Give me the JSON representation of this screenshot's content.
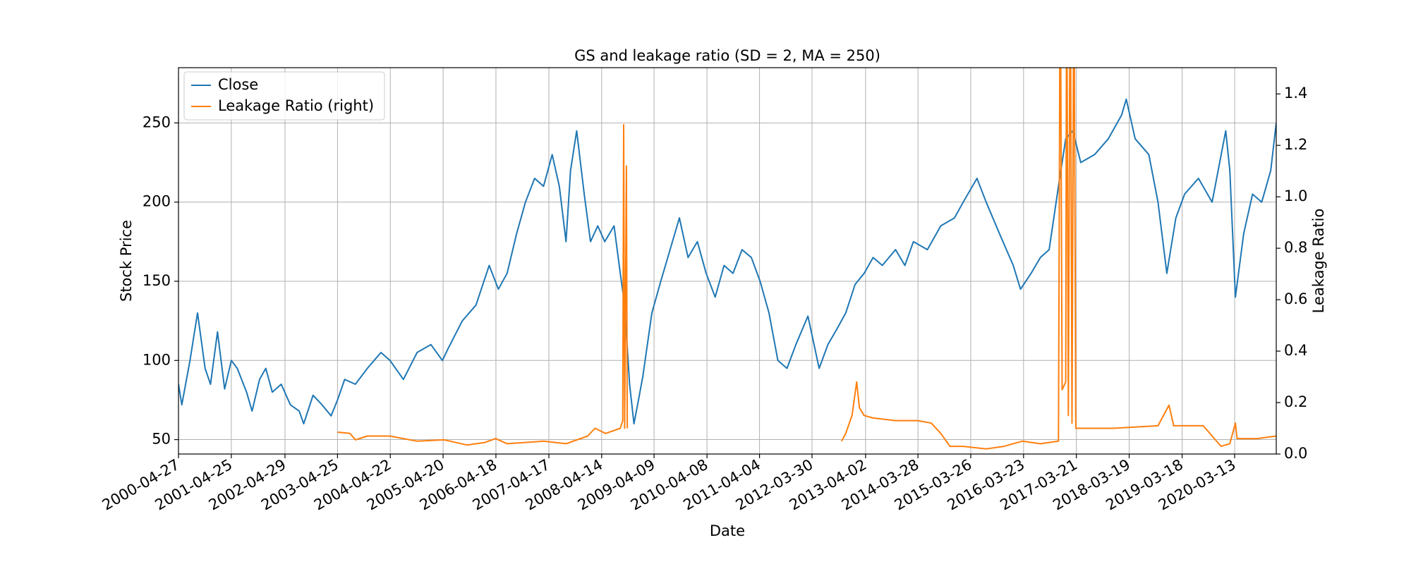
{
  "chart_data": {
    "type": "line",
    "title": "GS and leakage ratio (SD = 2, MA = 250)",
    "x_label": "Date",
    "y_label": "Stock Price",
    "y2_label": "Leakage Ratio",
    "xlim": [
      "2000-04-27",
      "2020-12-24"
    ],
    "xticks": [
      "2000-04-27",
      "2001-04-25",
      "2002-04-29",
      "2003-04-25",
      "2004-04-22",
      "2005-04-20",
      "2006-04-18",
      "2007-04-17",
      "2008-04-14",
      "2009-04-09",
      "2010-04-08",
      "2011-04-04",
      "2012-03-30",
      "2013-04-02",
      "2014-03-28",
      "2015-03-26",
      "2016-03-23",
      "2017-03-21",
      "2018-03-19",
      "2019-03-18",
      "2020-03-13"
    ],
    "ylim": [
      40.9,
      284.9
    ],
    "yticks": [
      50,
      100,
      150,
      200,
      250
    ],
    "y2lim": [
      0,
      1.502
    ],
    "y2ticks": [
      {
        "value": 0,
        "label": "0.0"
      },
      0.2,
      0.4,
      0.6,
      0.8,
      {
        "value": 1,
        "label": "1.0"
      },
      1.2,
      1.4
    ],
    "grid": true,
    "legend": "upper left",
    "series": [
      {
        "name": "Close",
        "color": "#1f77b4",
        "axis": "y",
        "x": [
          "2000-04-27",
          "2000-05-20",
          "2000-07-15",
          "2000-09-05",
          "2000-10-27",
          "2000-12-03",
          "2001-01-20",
          "2001-03-10",
          "2001-04-25",
          "2001-06-05",
          "2001-08-08",
          "2001-09-15",
          "2001-11-05",
          "2001-12-18",
          "2002-02-01",
          "2002-04-03",
          "2002-06-05",
          "2002-08-05",
          "2002-09-05",
          "2002-11-08",
          "2003-01-09",
          "2003-03-12",
          "2003-04-25",
          "2003-06-13",
          "2003-08-26",
          "2003-11-16",
          "2004-02-18",
          "2004-04-20",
          "2004-07-21",
          "2004-10-23",
          "2005-01-26",
          "2005-04-15",
          "2005-05-27",
          "2005-08-30",
          "2005-12-02",
          "2006-03-03",
          "2006-05-05",
          "2006-07-04",
          "2006-09-07",
          "2006-11-07",
          "2007-01-09",
          "2007-03-11",
          "2007-05-10",
          "2007-06-28",
          "2007-08-13",
          "2007-09-13",
          "2007-10-25",
          "2007-12-16",
          "2008-01-28",
          "2008-03-18",
          "2008-05-05",
          "2008-07-08",
          "2008-08-20",
          "2008-09-19",
          "2008-10-23",
          "2008-11-22",
          "2008-12-23",
          "2009-01-22",
          "2009-03-25",
          "2009-05-25",
          "2009-07-28",
          "2009-09-30",
          "2009-11-29",
          "2010-02-01",
          "2010-04-02",
          "2010-06-03",
          "2010-08-03",
          "2010-10-04",
          "2010-12-05",
          "2011-02-07",
          "2011-04-08",
          "2011-06-08",
          "2011-08-08",
          "2011-10-10",
          "2011-12-10",
          "2012-03-02",
          "2012-05-18",
          "2012-07-17",
          "2012-09-18",
          "2012-11-17",
          "2013-01-20",
          "2013-03-23",
          "2013-05-24",
          "2013-07-26",
          "2013-10-25",
          "2013-12-28",
          "2014-02-25",
          "2014-06-01",
          "2014-09-01",
          "2014-12-04",
          "2015-02-02",
          "2015-05-08",
          "2015-07-10",
          "2015-10-10",
          "2016-01-12",
          "2016-03-02",
          "2016-05-14",
          "2016-07-17",
          "2016-09-15",
          "2016-11-18",
          "2017-01-07",
          "2017-02-25",
          "2017-04-20",
          "2017-07-24",
          "2017-10-27",
          "2018-01-26",
          "2018-02-27",
          "2018-04-29",
          "2018-08-01",
          "2018-10-03",
          "2018-12-03",
          "2019-02-03",
          "2019-04-04",
          "2019-07-08",
          "2019-10-10",
          "2020-01-12",
          "2020-02-09",
          "2020-03-18",
          "2020-05-14",
          "2020-07-14",
          "2020-09-15",
          "2020-11-16",
          "2020-12-24"
        ],
        "values": [
          85,
          72,
          100,
          130,
          95,
          85,
          118,
          82,
          100,
          95,
          80,
          68,
          88,
          95,
          80,
          85,
          72,
          68,
          60,
          78,
          72,
          65,
          75,
          88,
          85,
          95,
          105,
          100,
          88,
          105,
          110,
          100,
          108,
          125,
          135,
          160,
          145,
          155,
          180,
          200,
          215,
          210,
          230,
          210,
          175,
          220,
          245,
          205,
          175,
          185,
          175,
          185,
          155,
          135,
          85,
          60,
          75,
          90,
          130,
          150,
          170,
          190,
          165,
          175,
          155,
          140,
          160,
          155,
          170,
          165,
          150,
          130,
          100,
          95,
          110,
          128,
          95,
          110,
          120,
          130,
          148,
          155,
          165,
          160,
          170,
          160,
          175,
          170,
          185,
          190,
          200,
          215,
          200,
          180,
          160,
          145,
          155,
          165,
          170,
          210,
          240,
          245,
          225,
          230,
          240,
          255,
          265,
          240,
          230,
          200,
          155,
          190,
          205,
          215,
          200,
          245,
          220,
          140,
          180,
          205,
          200,
          220,
          250
        ]
      },
      {
        "name": "Leakage Ratio (right)",
        "color": "#ff7f0e",
        "axis": "y2",
        "x": [
          "2003-04-25",
          "2003-07-20",
          "2003-08-26",
          "2003-11-16",
          "2004-04-20",
          "2004-10-23",
          "2005-04-27",
          "2005-09-30",
          "2006-02-02",
          "2006-04-16",
          "2006-07-04",
          "2007-03-11",
          "2007-08-13",
          "2008-01-09",
          "2008-02-28",
          "2008-05-11",
          "2008-08-20",
          "2008-09-06",
          "2008-09-12",
          "2008-09-19",
          "2008-10-01",
          "2008-10-07",
          "2010-01-01",
          "2012-10-18",
          "2012-11-17",
          "2012-12-30",
          "2013-01-31",
          "2013-02-19",
          "2013-03-23",
          "2013-05-24",
          "2013-10-25",
          "2014-03-26",
          "2014-06-28",
          "2014-09-01",
          "2014-11-03",
          "2015-02-02",
          "2015-07-10",
          "2015-11-10",
          "2016-03-14",
          "2016-07-17",
          "2016-11-18",
          "2016-11-30",
          "2016-12-13",
          "2017-01-07",
          "2017-01-13",
          "2017-01-25",
          "2017-02-07",
          "2017-02-19",
          "2017-03-04",
          "2017-03-17",
          "2017-04-20",
          "2017-11-30",
          "2018-10-03",
          "2018-12-18",
          "2019-01-19",
          "2019-08-10",
          "2019-12-11",
          "2020-02-09",
          "2020-03-18",
          "2020-03-30",
          "2020-08-15",
          "2020-12-24"
        ],
        "values": [
          0.085,
          0.08,
          0.055,
          0.07,
          0.07,
          0.05,
          0.055,
          0.035,
          0.045,
          0.06,
          0.04,
          0.05,
          0.04,
          0.07,
          0.1,
          0.08,
          0.1,
          0.13,
          1.28,
          0.1,
          1.12,
          0.1,
          null,
          0.05,
          0.08,
          0.15,
          0.28,
          0.18,
          0.15,
          0.14,
          0.13,
          0.13,
          0.12,
          0.08,
          0.03,
          0.03,
          0.02,
          0.03,
          0.05,
          0.04,
          0.05,
          2,
          0.25,
          0.28,
          2,
          0.15,
          2,
          0.12,
          2,
          0.1,
          0.1,
          0.1,
          0.11,
          0.19,
          0.11,
          0.11,
          0.03,
          0.04,
          0.12,
          0.06,
          0.06,
          0.07
        ]
      }
    ]
  }
}
